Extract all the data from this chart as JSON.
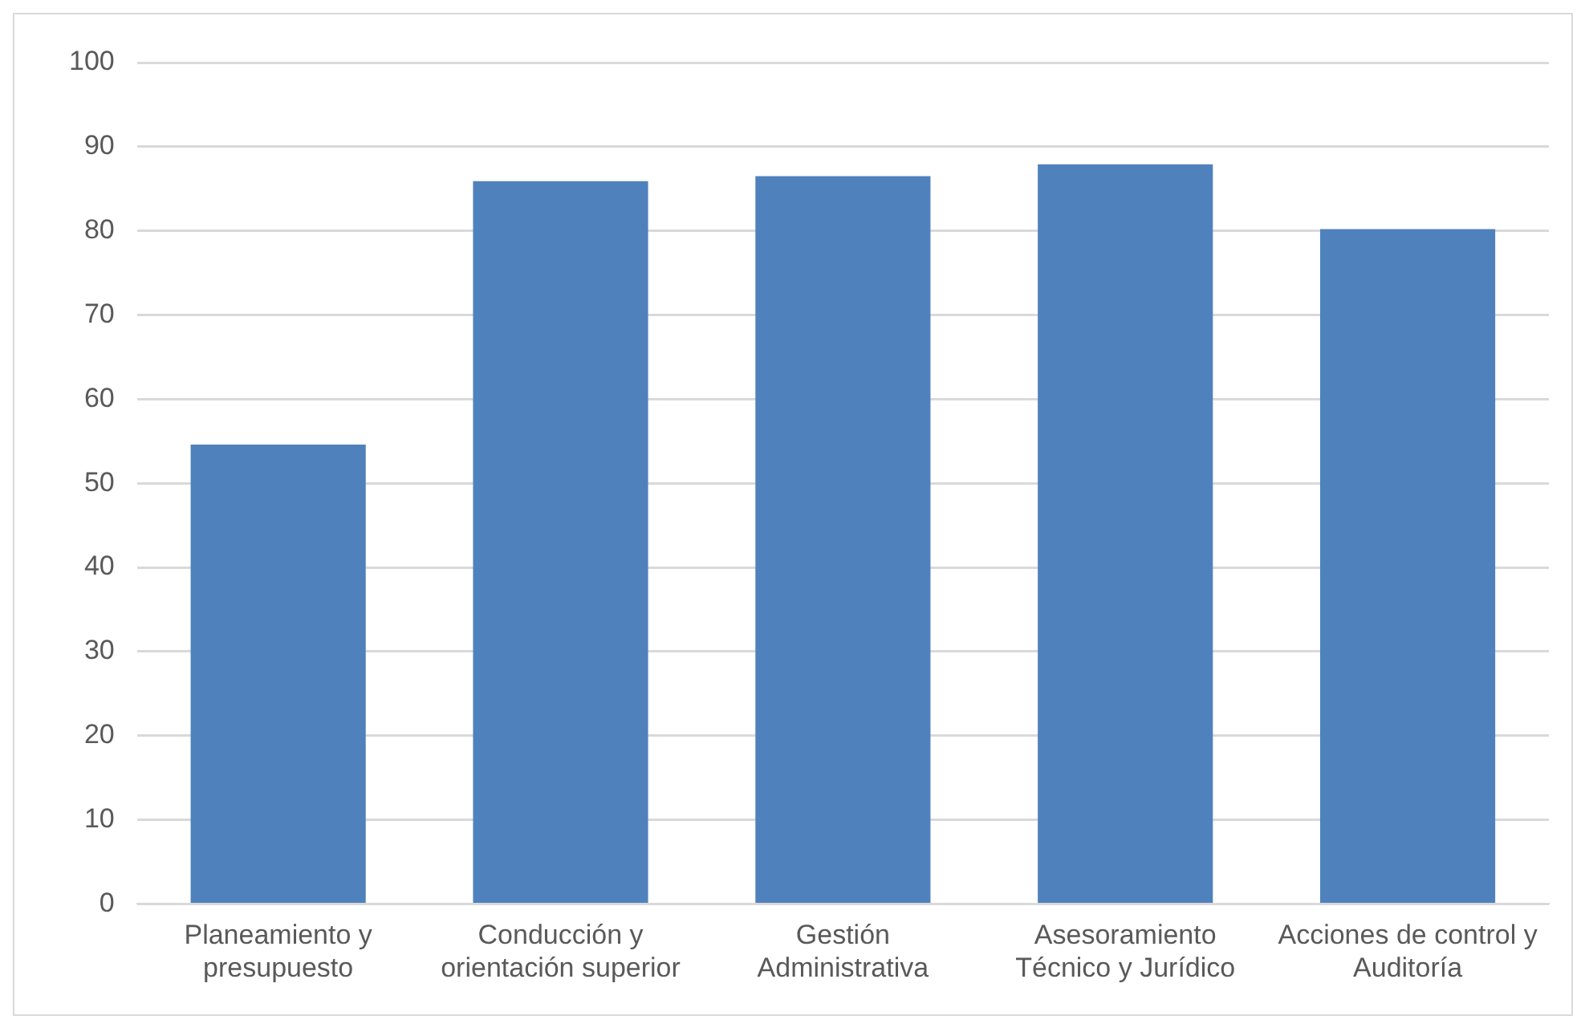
{
  "chart_data": {
    "type": "bar",
    "categories": [
      "Planeamiento y presupuesto",
      "Conducción y orientación superior",
      "Gestión Administrativa",
      "Asesoramiento Técnico y Jurídico",
      "Acciones de control y Auditoría"
    ],
    "values": [
      54.6,
      85.9,
      86.5,
      87.9,
      80.2
    ],
    "color": "#4f81bd",
    "ylim": [
      0,
      100
    ],
    "yticks": [
      0,
      10,
      20,
      30,
      40,
      50,
      60,
      70,
      80,
      90,
      100
    ],
    "grid": "y",
    "legend": false
  }
}
